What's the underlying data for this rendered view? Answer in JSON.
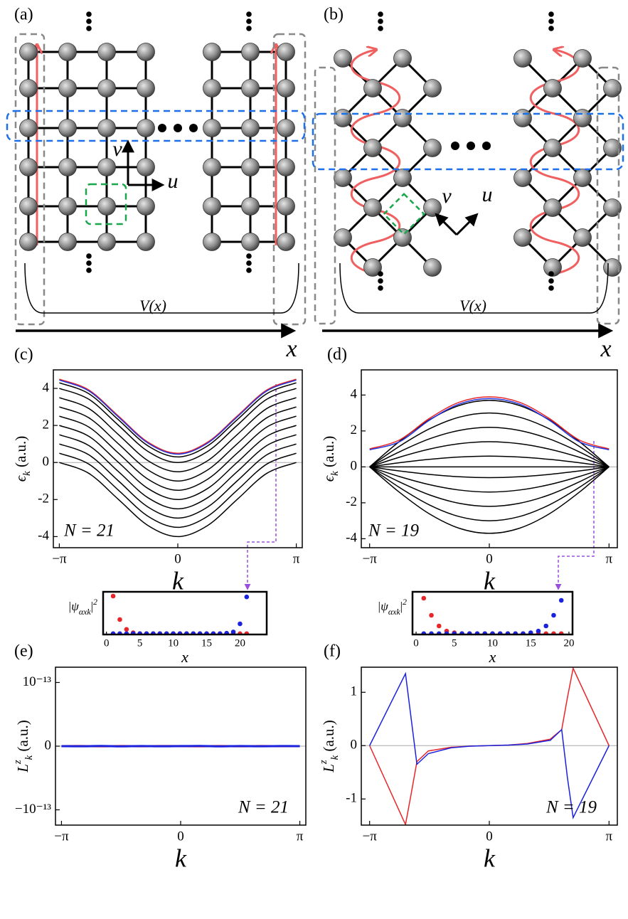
{
  "figure": {
    "panel_labels": [
      "(a)",
      "(b)",
      "(c)",
      "(d)",
      "(e)",
      "(f)"
    ],
    "diagrams": [
      {
        "potential_label": "V(x)",
        "axis_label": "x",
        "vector_labels": [
          "v",
          "u"
        ]
      },
      {
        "potential_label": "V(x)",
        "axis_label": "x",
        "vector_labels": [
          "v",
          "u"
        ]
      }
    ]
  },
  "chart_data": [
    {
      "type": "line",
      "x": [
        -3.1416,
        -2.3562,
        -1.5708,
        -0.7854,
        0,
        0.7854,
        1.5708,
        2.3562,
        3.1416
      ],
      "xlim": [
        -3.3,
        3.3
      ],
      "ylim": [
        -4.6,
        5.0
      ],
      "xticks": [
        {
          "value": -3.1416,
          "label": "−π"
        },
        0,
        {
          "value": 3.1416,
          "label": "π"
        }
      ],
      "yticks": [
        4,
        2,
        0,
        -2,
        -4
      ],
      "xlabel": "k",
      "ylabel": [
        {
          "t": "ϵ"
        },
        {
          "sub": "k"
        },
        {
          "t": "  (a.u.)"
        }
      ],
      "annotation": "N = 21",
      "series": [
        {
          "color": "#000000",
          "values": [
            0,
            -0.59,
            -2,
            -3.41,
            -4,
            -3.41,
            -2,
            -0.59,
            0
          ]
        },
        {
          "color": "#000000",
          "values": [
            0.5,
            -0.09,
            -1.5,
            -2.91,
            -3.5,
            -2.91,
            -1.5,
            -0.09,
            0.5
          ]
        },
        {
          "color": "#000000",
          "values": [
            1,
            0.41,
            -1,
            -2.41,
            -3,
            -2.41,
            -1,
            0.41,
            1
          ]
        },
        {
          "color": "#000000",
          "values": [
            1.5,
            0.91,
            -0.5,
            -1.91,
            -2.5,
            -1.91,
            -0.5,
            0.91,
            1.5
          ]
        },
        {
          "color": "#000000",
          "values": [
            2,
            1.41,
            0,
            -1.41,
            -2,
            -1.41,
            0,
            1.41,
            2
          ]
        },
        {
          "color": "#000000",
          "values": [
            2.5,
            1.91,
            0.5,
            -0.91,
            -1.5,
            -0.91,
            0.5,
            1.91,
            2.5
          ]
        },
        {
          "color": "#000000",
          "values": [
            3,
            2.41,
            1,
            -0.41,
            -1,
            -0.41,
            1,
            2.41,
            3
          ]
        },
        {
          "color": "#000000",
          "values": [
            3.5,
            2.91,
            1.5,
            0.09,
            -0.5,
            0.09,
            1.5,
            2.91,
            3.5
          ]
        },
        {
          "color": "#000000",
          "values": [
            4,
            3.41,
            2,
            0.59,
            0,
            0.59,
            2,
            3.41,
            4
          ]
        },
        {
          "color": "#000000",
          "values": [
            4.3,
            3.71,
            2.3,
            0.89,
            0.3,
            0.89,
            2.3,
            3.71,
            4.3
          ]
        },
        {
          "color": "#e8262a",
          "values": [
            4.5,
            3.91,
            2.5,
            1.09,
            0.5,
            1.09,
            2.5,
            3.91,
            4.5
          ]
        },
        {
          "color": "#2233dd",
          "values": [
            4.45,
            3.86,
            2.45,
            1.04,
            0.45,
            1.04,
            2.45,
            3.86,
            4.45
          ]
        }
      ]
    },
    {
      "type": "line",
      "x": [
        -3.1416,
        -2.3562,
        -1.5708,
        -0.7854,
        0,
        0.7854,
        1.5708,
        2.3562,
        3.1416
      ],
      "xlim": [
        -3.36,
        3.36
      ],
      "ylim": [
        -4.5,
        5.4
      ],
      "xticks": [
        {
          "value": -3.1416,
          "label": "−π"
        },
        0,
        {
          "value": 3.1416,
          "label": "π"
        }
      ],
      "yticks": [
        4,
        2,
        0,
        -2,
        -4
      ],
      "xlabel": "k",
      "ylabel": [
        {
          "t": "ϵ"
        },
        {
          "sub": "k"
        },
        {
          "t": "  (a.u.)"
        }
      ],
      "annotation": "N = 19",
      "series": [
        {
          "color": "#000000",
          "values": [
            0,
            1.42,
            2.62,
            3.42,
            3.7,
            3.42,
            2.62,
            1.42,
            0
          ]
        },
        {
          "color": "#000000",
          "values": [
            0,
            1.15,
            2.12,
            2.77,
            3,
            2.77,
            2.12,
            1.15,
            0
          ]
        },
        {
          "color": "#000000",
          "values": [
            0,
            0.84,
            1.56,
            2.03,
            2.2,
            2.03,
            1.56,
            0.84,
            0
          ]
        },
        {
          "color": "#000000",
          "values": [
            0,
            0.54,
            0.99,
            1.29,
            1.4,
            1.29,
            0.99,
            0.54,
            0
          ]
        },
        {
          "color": "#000000",
          "values": [
            0,
            0.23,
            0.42,
            0.55,
            0.6,
            0.55,
            0.42,
            0.23,
            0
          ]
        },
        {
          "color": "#000000",
          "values": [
            0,
            0,
            0,
            0,
            0,
            0,
            0,
            0,
            0
          ]
        },
        {
          "color": "#000000",
          "values": [
            0,
            -0.23,
            -0.42,
            -0.55,
            -0.6,
            -0.55,
            -0.42,
            -0.23,
            0
          ]
        },
        {
          "color": "#000000",
          "values": [
            0,
            -0.54,
            -0.99,
            -1.29,
            -1.4,
            -1.29,
            -0.99,
            -0.54,
            0
          ]
        },
        {
          "color": "#000000",
          "values": [
            0,
            -0.84,
            -1.56,
            -2.03,
            -2.2,
            -2.03,
            -1.56,
            -0.84,
            0
          ]
        },
        {
          "color": "#000000",
          "values": [
            0,
            -1.15,
            -2.12,
            -2.77,
            -3,
            -2.77,
            -2.12,
            -1.15,
            0
          ]
        },
        {
          "color": "#000000",
          "values": [
            0,
            -1.42,
            -2.62,
            -3.42,
            -3.7,
            -3.42,
            -2.62,
            -1.42,
            0
          ]
        },
        {
          "color": "#e8262a",
          "values": [
            1,
            1.5,
            2.7,
            3.6,
            3.9,
            3.6,
            2.7,
            1.5,
            1
          ]
        },
        {
          "color": "#2233dd",
          "values": [
            0.95,
            1.4,
            2.6,
            3.5,
            3.8,
            3.5,
            2.6,
            1.4,
            0.95
          ]
        }
      ]
    },
    {
      "type": "scatter",
      "x": [
        1,
        2,
        3,
        4,
        5,
        6,
        7,
        8,
        9,
        10,
        11,
        12,
        13,
        14,
        15,
        16,
        17,
        18,
        19,
        20,
        21
      ],
      "xlim": [
        -0.5,
        24
      ],
      "ylim": [
        0,
        1
      ],
      "xticks": [
        0,
        5,
        10,
        15,
        20
      ],
      "xlabel": "x",
      "ylabel": [
        {
          "t": "|ψ"
        },
        {
          "sub": "αxk"
        },
        {
          "t": "|"
        },
        {
          "sup": "2"
        }
      ],
      "series": [
        {
          "color": "#e8262a",
          "values": [
            0.9,
            0.35,
            0.12,
            0.04,
            0.02,
            0.02,
            0.02,
            0.02,
            0.02,
            0.02,
            0.02,
            0.02,
            0.02,
            0.02,
            0.02,
            0.02,
            0.02,
            0.02,
            0.02,
            0.02,
            0.02
          ]
        },
        {
          "color": "#1a22dd",
          "values": [
            0.02,
            0.02,
            0.02,
            0.02,
            0.02,
            0.02,
            0.02,
            0.02,
            0.02,
            0.02,
            0.02,
            0.02,
            0.02,
            0.02,
            0.02,
            0.02,
            0.02,
            0.03,
            0.06,
            0.25,
            0.88
          ]
        }
      ]
    },
    {
      "type": "scatter",
      "x": [
        1,
        2,
        3,
        4,
        5,
        6,
        7,
        8,
        9,
        10,
        11,
        12,
        13,
        14,
        15,
        16,
        17,
        18,
        19
      ],
      "xlim": [
        -0.47,
        20.47
      ],
      "ylim": [
        0,
        1
      ],
      "xticks": [
        0,
        5,
        10,
        15,
        20
      ],
      "xlabel": "x",
      "ylabel": [
        {
          "t": "|ψ"
        },
        {
          "sub": "αxk"
        },
        {
          "t": "|"
        },
        {
          "sup": "2"
        }
      ],
      "series": [
        {
          "color": "#e8262a",
          "values": [
            0.85,
            0.45,
            0.2,
            0.08,
            0.04,
            0.02,
            0.02,
            0.02,
            0.02,
            0.02,
            0.02,
            0.02,
            0.02,
            0.02,
            0.02,
            0.02,
            0.02,
            0.02,
            0.02
          ]
        },
        {
          "color": "#1a22dd",
          "values": [
            0.02,
            0.02,
            0.02,
            0.02,
            0.02,
            0.02,
            0.02,
            0.02,
            0.02,
            0.02,
            0.02,
            0.02,
            0.02,
            0.02,
            0.04,
            0.08,
            0.2,
            0.45,
            0.8
          ]
        }
      ]
    },
    {
      "type": "line",
      "x": [
        -3.1416,
        -2.618,
        -2.0944,
        -1.5708,
        -1.0472,
        -0.5236,
        0,
        0.5236,
        1.0472,
        1.5708,
        2.0944,
        2.618,
        3.1416
      ],
      "xlim": [
        -3.3,
        3.3
      ],
      "ylim": [
        -1.24e-13,
        1.24e-13
      ],
      "xticks": [
        {
          "value": -3.1416,
          "label": "−π"
        },
        0,
        {
          "value": 3.1416,
          "label": "π"
        }
      ],
      "yticks": [
        {
          "value": 1e-13,
          "label": "10⁻¹³"
        },
        0,
        {
          "value": -1e-13,
          "label": "−10⁻¹³"
        }
      ],
      "xlabel": "k",
      "ylabel": [
        {
          "t": "L"
        },
        {
          "sup": "z"
        },
        {
          "sub": "k"
        },
        {
          "t": "  (a.u.)"
        }
      ],
      "annotation": "N = 21",
      "series": [
        {
          "color": "#e8262a",
          "values": [
            0,
            1e-16,
            -2e-16,
            1e-16,
            -1e-16,
            2e-16,
            0,
            -1e-16,
            1e-16,
            -2e-16,
            1e-16,
            0,
            0
          ]
        },
        {
          "color": "#1a22dd",
          "values": [
            0,
            -2e-16,
            3e-16,
            -3e-16,
            2e-16,
            -2e-16,
            1e-16,
            3e-16,
            -3e-16,
            2e-16,
            -2e-16,
            1e-16,
            0
          ]
        }
      ]
    },
    {
      "type": "line",
      "x": [
        -3.1416,
        -2.2,
        -2.05,
        -1.9,
        -1.6,
        -1,
        -0.5,
        0,
        0.5,
        1,
        1.6,
        1.9,
        2.05,
        2.2,
        3.1416
      ],
      "xlim": [
        -3.36,
        3.36
      ],
      "ylim": [
        -1.49,
        1.47
      ],
      "xticks": [
        {
          "value": -3.1416,
          "label": "−π"
        },
        0,
        {
          "value": 3.1416,
          "label": "π"
        }
      ],
      "yticks": [
        1,
        0,
        -1
      ],
      "xlabel": "k",
      "ylabel": [
        {
          "t": "L"
        },
        {
          "sup": "z"
        },
        {
          "sub": "k"
        },
        {
          "t": "  (a.u.)"
        }
      ],
      "annotation": "N = 19",
      "series": [
        {
          "color": "#e8262a",
          "values": [
            0,
            -1.48,
            -0.9,
            -0.3,
            -0.1,
            -0.03,
            -0.01,
            0,
            0.01,
            0.04,
            0.12,
            0.3,
            0.9,
            1.45,
            0
          ]
        },
        {
          "color": "#1a22dd",
          "values": [
            0,
            1.35,
            0.5,
            -0.35,
            -0.15,
            -0.04,
            -0.01,
            0,
            0.01,
            0.03,
            0.1,
            0.3,
            -0.6,
            -1.35,
            0
          ]
        }
      ]
    }
  ]
}
